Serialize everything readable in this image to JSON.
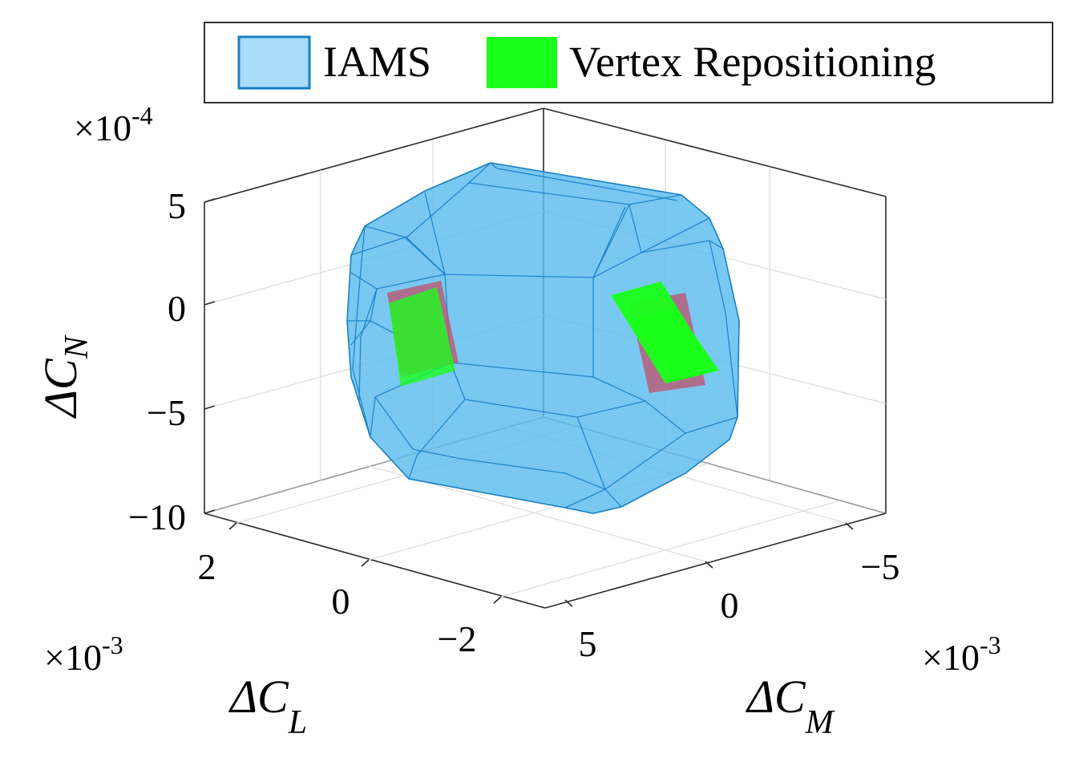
{
  "chart_data": {
    "type": "3d-polytope",
    "legend": {
      "placement": "top-right",
      "entries": [
        {
          "label": "IAMS",
          "color": "#5bbcef",
          "edge": "#1a7fc4"
        },
        {
          "label": "Vertex Repositioning",
          "color": "#1aff1a"
        }
      ]
    },
    "axes": {
      "z": {
        "label": "ΔC",
        "sub": "N",
        "multiplier": "×10",
        "exp": "-4",
        "ticks": [
          "5",
          "0",
          "−5",
          "−10"
        ],
        "range": [
          -10,
          5
        ]
      },
      "x": {
        "label": "ΔC",
        "sub": "L",
        "multiplier": "×10",
        "exp": "-3",
        "ticks": [
          "2",
          "0",
          "−2"
        ]
      },
      "y": {
        "label": "ΔC",
        "sub": "M",
        "multiplier": "×10",
        "exp": "-3",
        "ticks": [
          "−5",
          "0",
          "5"
        ]
      }
    },
    "grid": true,
    "colors": {
      "iams_fill": "#5bbcef",
      "iams_edge": "#1a7fc4",
      "vr_fill": "#19ff19",
      "inner_patch": "#c0506a"
    }
  }
}
